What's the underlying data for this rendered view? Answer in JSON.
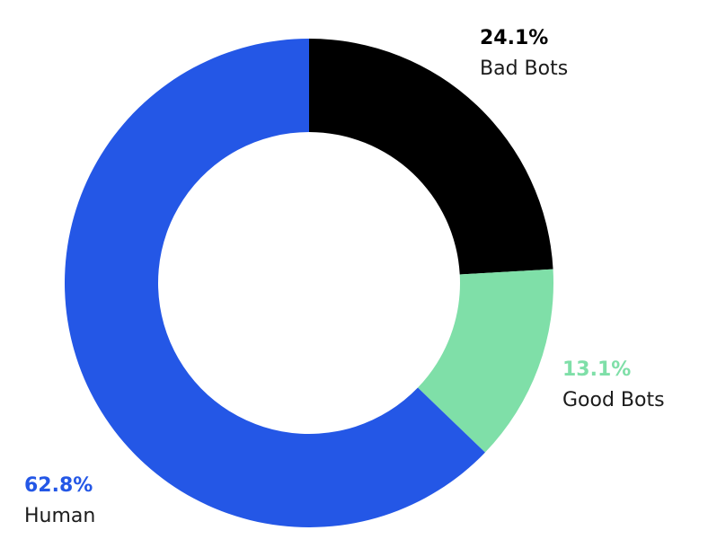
{
  "chart_data": {
    "type": "pie",
    "variant": "donut",
    "slices": [
      {
        "label": "Bad Bots",
        "value": 24.1,
        "value_label": "24.1%",
        "color": "#000000"
      },
      {
        "label": "Good Bots",
        "value": 13.1,
        "value_label": "13.1%",
        "color": "#7fdfa8"
      },
      {
        "label": "Human",
        "value": 62.8,
        "value_label": "62.8%",
        "color": "#2457e6"
      }
    ],
    "start_angle": "12 o'clock",
    "direction": "clockwise"
  }
}
